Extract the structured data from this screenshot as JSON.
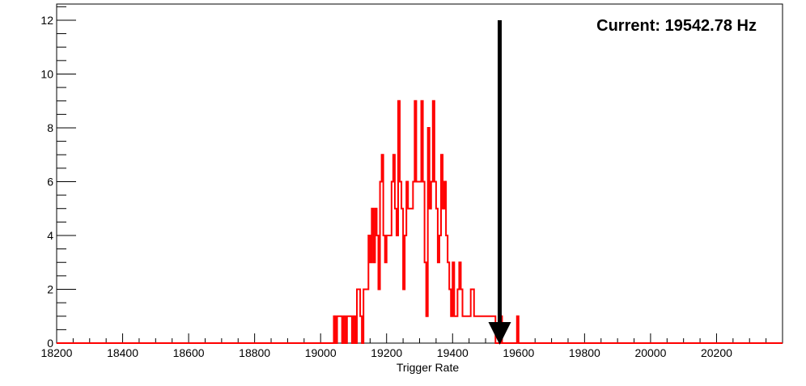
{
  "chart_data": {
    "type": "histogram",
    "xlabel": "Trigger Rate",
    "ylabel": "",
    "title": "",
    "annotation": "Current: 19542.78 Hz",
    "marker_x": 19542.78,
    "xlim": [
      18200,
      20400
    ],
    "ylim": [
      0,
      12.6
    ],
    "x_ticks": [
      18200,
      18400,
      18600,
      18800,
      19000,
      19200,
      19400,
      19600,
      19800,
      20000,
      20200
    ],
    "y_ticks": [
      0,
      2,
      4,
      6,
      8,
      10,
      12
    ],
    "grid": false,
    "series": [
      {
        "color": "#ff0000",
        "bin_width": 5,
        "bins": [
          [
            19040,
            1
          ],
          [
            19045,
            0
          ],
          [
            19050,
            1
          ],
          [
            19055,
            1
          ],
          [
            19060,
            1
          ],
          [
            19065,
            0
          ],
          [
            19070,
            1
          ],
          [
            19075,
            0
          ],
          [
            19080,
            1
          ],
          [
            19085,
            1
          ],
          [
            19090,
            1
          ],
          [
            19095,
            0
          ],
          [
            19100,
            1
          ],
          [
            19105,
            0
          ],
          [
            19110,
            2
          ],
          [
            19115,
            2
          ],
          [
            19120,
            1
          ],
          [
            19125,
            0
          ],
          [
            19130,
            2
          ],
          [
            19135,
            2
          ],
          [
            19140,
            2
          ],
          [
            19145,
            4
          ],
          [
            19150,
            3
          ],
          [
            19155,
            5
          ],
          [
            19160,
            3
          ],
          [
            19165,
            5
          ],
          [
            19170,
            4
          ],
          [
            19175,
            2
          ],
          [
            19180,
            6
          ],
          [
            19185,
            7
          ],
          [
            19190,
            4
          ],
          [
            19195,
            3
          ],
          [
            19200,
            4
          ],
          [
            19205,
            4
          ],
          [
            19210,
            4
          ],
          [
            19215,
            6
          ],
          [
            19220,
            7
          ],
          [
            19225,
            5
          ],
          [
            19230,
            4
          ],
          [
            19235,
            9
          ],
          [
            19240,
            6
          ],
          [
            19245,
            5
          ],
          [
            19250,
            2
          ],
          [
            19255,
            4
          ],
          [
            19260,
            6
          ],
          [
            19265,
            5
          ],
          [
            19270,
            5
          ],
          [
            19275,
            5
          ],
          [
            19280,
            6
          ],
          [
            19285,
            9
          ],
          [
            19290,
            6
          ],
          [
            19295,
            6
          ],
          [
            19300,
            6
          ],
          [
            19305,
            9
          ],
          [
            19310,
            6
          ],
          [
            19315,
            3
          ],
          [
            19320,
            1
          ],
          [
            19325,
            8
          ],
          [
            19330,
            5
          ],
          [
            19335,
            6
          ],
          [
            19340,
            9
          ],
          [
            19345,
            6
          ],
          [
            19350,
            5
          ],
          [
            19355,
            3
          ],
          [
            19360,
            4
          ],
          [
            19365,
            7
          ],
          [
            19370,
            5
          ],
          [
            19375,
            6
          ],
          [
            19380,
            4
          ],
          [
            19385,
            3
          ],
          [
            19390,
            2
          ],
          [
            19395,
            1
          ],
          [
            19400,
            3
          ],
          [
            19405,
            1
          ],
          [
            19410,
            1
          ],
          [
            19415,
            2
          ],
          [
            19420,
            3
          ],
          [
            19425,
            2
          ],
          [
            19430,
            1
          ],
          [
            19435,
            1
          ],
          [
            19440,
            1
          ],
          [
            19445,
            1
          ],
          [
            19450,
            1
          ],
          [
            19455,
            2
          ],
          [
            19460,
            2
          ],
          [
            19465,
            1
          ],
          [
            19470,
            1
          ],
          [
            19475,
            1
          ],
          [
            19480,
            1
          ],
          [
            19485,
            1
          ],
          [
            19490,
            1
          ],
          [
            19495,
            1
          ],
          [
            19500,
            1
          ],
          [
            19505,
            1
          ],
          [
            19510,
            1
          ],
          [
            19515,
            1
          ],
          [
            19520,
            1
          ],
          [
            19525,
            1
          ],
          [
            19530,
            0
          ],
          [
            19535,
            0
          ],
          [
            19540,
            0
          ],
          [
            19545,
            1
          ],
          [
            19550,
            0
          ],
          [
            19555,
            0
          ],
          [
            19560,
            0
          ],
          [
            19565,
            0
          ],
          [
            19570,
            0
          ],
          [
            19575,
            0
          ],
          [
            19580,
            0
          ],
          [
            19585,
            0
          ],
          [
            19590,
            0
          ],
          [
            19595,
            1
          ]
        ]
      }
    ]
  }
}
